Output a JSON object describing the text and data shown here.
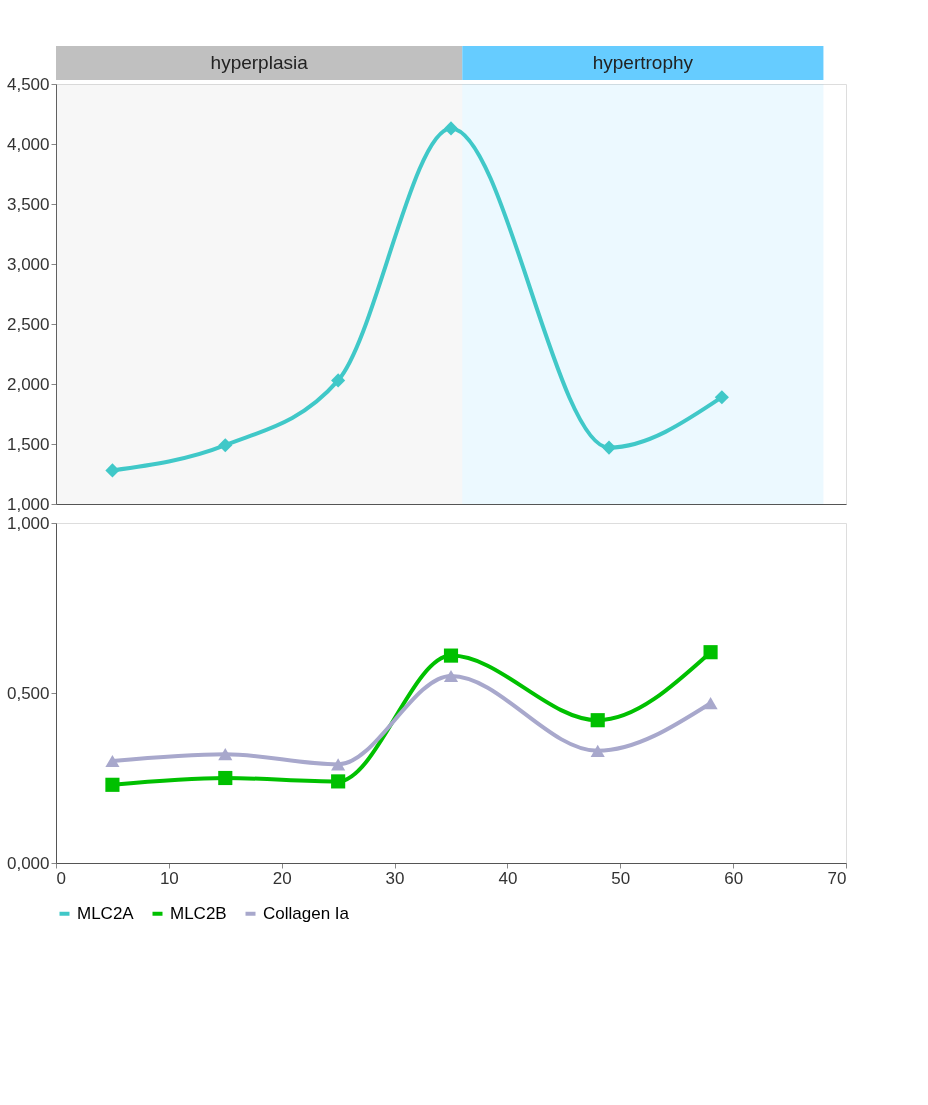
{
  "chart_data": [
    {
      "type": "line",
      "xlim": [
        0,
        70
      ],
      "xticks": [
        0,
        10,
        20,
        30,
        40,
        50,
        60,
        70
      ],
      "ylim": [
        1,
        4.5
      ],
      "yticks": [
        {
          "value": 1,
          "label": "1,000"
        },
        {
          "value": 1.5,
          "label": "1,500"
        },
        {
          "value": 2,
          "label": "2,000"
        },
        {
          "value": 2.5,
          "label": "2,500"
        },
        {
          "value": 3,
          "label": "3,000"
        },
        {
          "value": 3.5,
          "label": "3,500"
        },
        {
          "value": 4,
          "label": "4,000"
        },
        {
          "value": 4.5,
          "label": "4,500"
        }
      ],
      "tick_labels": "y",
      "legend": "bottom",
      "bands": [
        {
          "axis": "x",
          "from": 0,
          "to": 36,
          "label": "hyperplasia",
          "color": "#c0c0c0"
        },
        {
          "axis": "x",
          "from": 36,
          "to": 68,
          "label": "hypertrophy",
          "color": "#66ccff"
        }
      ],
      "series": [
        {
          "name": "MLC2A",
          "color": "#40c8c8",
          "marker": "diamond",
          "x": [
            5,
            15,
            25,
            35,
            49,
            59
          ],
          "values": [
            1.28,
            1.49,
            2.03,
            4.13,
            1.47,
            1.89
          ]
        }
      ]
    },
    {
      "type": "line",
      "xlim": [
        0,
        70
      ],
      "xticks": [
        0,
        10,
        20,
        30,
        40,
        50,
        60,
        70
      ],
      "ylim": [
        0,
        1
      ],
      "yticks": [
        {
          "value": 0,
          "label": "0,000"
        },
        {
          "value": 0.5,
          "label": "0,500"
        },
        {
          "value": 1,
          "label": "1,000"
        }
      ],
      "legend": "bottom",
      "series": [
        {
          "name": "MLC2B",
          "color": "#00c000",
          "marker": "square",
          "x": [
            5,
            15,
            25,
            35,
            48,
            58
          ],
          "values": [
            0.23,
            0.25,
            0.24,
            0.61,
            0.42,
            0.62
          ]
        },
        {
          "name": "Collagen Ia",
          "color": "#a8a8cc",
          "marker": "triangle",
          "x": [
            5,
            15,
            25,
            35,
            48,
            58
          ],
          "values": [
            0.3,
            0.32,
            0.29,
            0.55,
            0.33,
            0.47
          ]
        }
      ]
    }
  ]
}
